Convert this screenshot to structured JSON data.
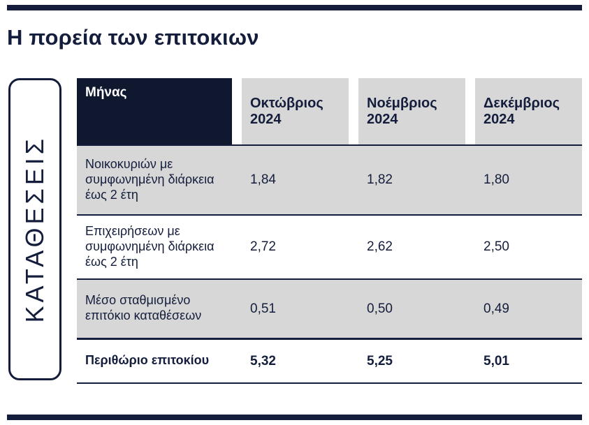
{
  "page": {
    "title": "Η πορεία των επιτοκιων"
  },
  "sidebar": {
    "label": "ΚΑΤΑΘΕΣΕΙΣ"
  },
  "colors": {
    "navy": "#141e3c",
    "cell_gray": "#d7d7d7",
    "header_text": "#ffffff"
  },
  "chart_data": {
    "type": "table",
    "title": "Η πορεία των επιτοκιων",
    "columns": [
      "Μήνας",
      "Οκτώβριος 2024",
      "Νοέμβριος 2024",
      "Δεκέμβριος 2024"
    ],
    "rows": [
      {
        "label": "Νοικοκυριών με συμφωνημένη διάρκεια έως 2 έτη",
        "values": [
          "1,84",
          "1,82",
          "1,80"
        ]
      },
      {
        "label": "Επιχειρήσεων με συμφωνημένη διάρκεια έως 2 έτη",
        "values": [
          "2,72",
          "2,62",
          "2,50"
        ]
      },
      {
        "label": "Μέσο σταθμισμένο επιτόκιο καταθέσεων",
        "values": [
          "0,51",
          "0,50",
          "0,49"
        ]
      },
      {
        "label": "Περιθώριο επιτοκίου",
        "values": [
          "5,32",
          "5,25",
          "5,01"
        ],
        "bold": true
      }
    ]
  }
}
